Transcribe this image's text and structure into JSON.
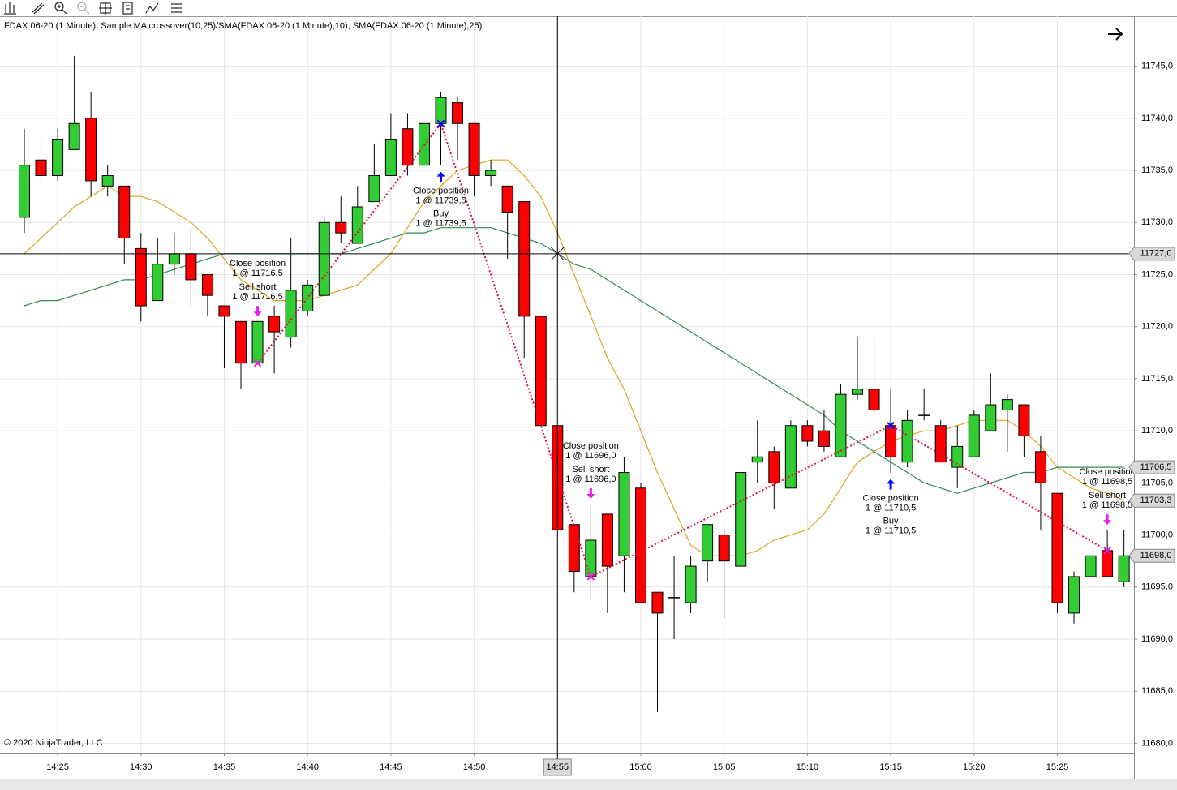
{
  "chart_data": {
    "type": "candlestick",
    "title": "FDAX 06-20 (1 Minute), Sample MA crossover(10,25)/SMA(FDAX 06-20 (1 Minute),10), SMA(FDAX 06-20 (1 Minute),25)",
    "copyright": "© 2020 NinjaTrader, LLC",
    "categories": [
      null,
      null,
      "14:25",
      null,
      null,
      null,
      null,
      "14:30",
      null,
      null,
      null,
      null,
      "14:35",
      null,
      null,
      null,
      null,
      "14:40",
      null,
      null,
      null,
      null,
      "14:45",
      null,
      null,
      null,
      null,
      "14:50",
      null,
      null,
      null,
      null,
      "14:55",
      null,
      null,
      null,
      null,
      "15:00",
      null,
      null,
      null,
      null,
      "15:05",
      null,
      null,
      null,
      null,
      "15:10",
      null,
      null,
      null,
      null,
      "15:15",
      null,
      null,
      null,
      null,
      "15:20",
      null,
      null,
      null,
      null,
      "15:25",
      null,
      null,
      null,
      null
    ],
    "open": [
      11730.5,
      11736,
      11734.5,
      11737,
      11740,
      11733.5,
      11733.5,
      11727.5,
      11722.5,
      11726,
      11727,
      11725,
      11722,
      11720.5,
      11716.5,
      11721,
      11719,
      11721.5,
      11723,
      11730,
      11728,
      11732,
      11734.5,
      11739,
      11735.5,
      11739.5,
      11741.5,
      11739.5,
      11734.5,
      11733.5,
      11732,
      11721,
      11710.5,
      11701,
      11696,
      11702,
      11698,
      11704.5,
      11694.5,
      11694,
      11693.5,
      11697.5,
      11700,
      11697,
      11707,
      11708,
      11704.5,
      11710.5,
      11710,
      11707.5,
      11713.5,
      11714,
      11710.5,
      11707,
      11711.5,
      11710.5,
      11706.5,
      11707.5,
      11710,
      11712,
      11712.5,
      11708,
      11704,
      11692.5,
      11696,
      11698.5,
      11695.5
    ],
    "high": [
      11739,
      11738,
      11739,
      11746,
      11742.5,
      11735.5,
      11733.5,
      11729,
      11728.5,
      11729,
      11729.5,
      11725,
      11722,
      11720.5,
      11720.5,
      11722,
      11728.5,
      11724.5,
      11730.5,
      11732.5,
      11733.5,
      11737.5,
      11740.5,
      11740.5,
      11739.5,
      11742.5,
      11742,
      11739.5,
      11736,
      11733.5,
      11732,
      11721,
      11710.5,
      11701,
      11703,
      11702,
      11707.5,
      11705,
      11694.5,
      11698,
      11698,
      11701,
      11700.5,
      11706,
      11711,
      11708.5,
      11711,
      11711,
      11712,
      11714.5,
      11719,
      11719,
      11714,
      11712,
      11714,
      11711,
      11710.5,
      11712,
      11715.5,
      11713.5,
      11712.5,
      11709.5,
      11704,
      11696.5,
      11698,
      11700.5,
      11700.5
    ],
    "low": [
      11729,
      11733.5,
      11734,
      11737,
      11732.5,
      11732.5,
      11726,
      11720.5,
      11722.5,
      11725,
      11722,
      11721,
      11716,
      11714,
      11716.5,
      11715.5,
      11718,
      11721,
      11723,
      11728,
      11728,
      11732,
      11734.5,
      11734.5,
      11735.5,
      11735.5,
      11736,
      11732.5,
      11733.5,
      11726.5,
      11717,
      11710.5,
      11700.5,
      11694.5,
      11694,
      11692.5,
      11694.5,
      11693.5,
      11683,
      11690,
      11692.5,
      11695.5,
      11692,
      11697,
      11705,
      11702.5,
      11704.5,
      11708.5,
      11708,
      11707.5,
      11713,
      11711,
      11706,
      11706.5,
      11711,
      11707,
      11704.5,
      11707.5,
      11710,
      11708,
      11707.5,
      11700.5,
      11692.5,
      11691.5,
      11696,
      11696,
      11695
    ],
    "close": [
      11735.5,
      11734.5,
      11738,
      11739.5,
      11734,
      11734.5,
      11728.5,
      11722,
      11726,
      11727,
      11724.5,
      11723,
      11721,
      11716.5,
      11720.5,
      11719.5,
      11723.5,
      11724,
      11730,
      11729,
      11731.5,
      11734.5,
      11738,
      11735.5,
      11739.5,
      11742,
      11739.5,
      11734.5,
      11735,
      11731,
      11721,
      11710.5,
      11700.5,
      11696.5,
      11699.5,
      11697,
      11706,
      11693.5,
      11692.5,
      11694,
      11697,
      11701,
      11697.5,
      11706,
      11707.5,
      11705,
      11710.5,
      11709,
      11708.5,
      11713.5,
      11714,
      11712,
      11707.5,
      11711,
      11711.5,
      11707,
      11708.5,
      11711.5,
      11712.5,
      11713,
      11709.5,
      11705,
      11693.5,
      11696,
      11698,
      11696,
      11698
    ],
    "last_close_label": "11698,0",
    "up_color": "#32cd32",
    "down_color": "#ff0000",
    "series": [
      {
        "color": "#daa520",
        "last_label": "11703,3",
        "values": [
          11727,
          11728.5,
          11730,
          11731.5,
          11732.5,
          11733.5,
          11732.5,
          11732.5,
          11732,
          11731,
          11730,
          11728.5,
          11726.5,
          11724.5,
          11723.5,
          11722.5,
          11722.5,
          11722.5,
          11723,
          11723.5,
          11724,
          11725.5,
          11727,
          11729.5,
          11732,
          11733.5,
          11735,
          11735.5,
          11736,
          11736,
          11734.5,
          11732.5,
          11729,
          11725,
          11721,
          11717,
          11714,
          11710,
          11706,
          11702.5,
          11699,
          11698,
          11698,
          11698,
          11698.5,
          11699.5,
          11700,
          11700.5,
          11702,
          11704.5,
          11707,
          11708,
          11709,
          11709.5,
          11710,
          11710,
          11710.5,
          11711,
          11711,
          11711,
          11710,
          11708.5,
          11706.5,
          11705.5,
          11704.5,
          11704,
          11703.3
        ]
      },
      {
        "color": "#2e8b57",
        "last_label": "11706,5",
        "values": [
          11722,
          11722.5,
          11722.5,
          11723,
          11723.5,
          11724,
          11724.5,
          11724.5,
          11725,
          11725.5,
          11726,
          11726.5,
          11727,
          11727,
          11727,
          11727,
          11727,
          11727,
          11727,
          11727,
          11727.5,
          11728,
          11728.5,
          11729,
          11729,
          11729.5,
          11729.5,
          11729.5,
          11729.5,
          11729,
          11728.5,
          11728,
          11727,
          11726,
          11725.5,
          11724.5,
          11723.5,
          11722.5,
          11721.5,
          11720.5,
          11719.5,
          11718.5,
          11717.5,
          11716.5,
          11715.5,
          11714.5,
          11713.5,
          11712.5,
          11711.5,
          11710,
          11709,
          11708,
          11707,
          11706,
          11705,
          11704.5,
          11704,
          11704.5,
          11705,
          11705.5,
          11706,
          11706,
          11706.5,
          11706.5,
          11706.5,
          11706.5,
          11706.5
        ]
      }
    ],
    "trade_line_color": "#e0103a",
    "executions": [
      null,
      null,
      null,
      null,
      null,
      null,
      null,
      null,
      null,
      null,
      null,
      null,
      null,
      null,
      {
        "close": "Close position",
        "close_label": "1 @ 11716,5",
        "entry": "Sell short",
        "entry_label": "1 @ 11716,5",
        "price": 11716.5,
        "arrow": "down",
        "color": "#e81ee8"
      },
      null,
      null,
      null,
      null,
      null,
      null,
      null,
      null,
      null,
      null,
      {
        "close": "Close position",
        "close_label": "1 @ 11739,5",
        "entry": "Buy",
        "entry_label": "1 @ 11739,5",
        "price": 11739.5,
        "arrow": "up",
        "color": "#0000ff"
      },
      null,
      null,
      null,
      null,
      null,
      null,
      null,
      null,
      {
        "close": "Close position",
        "close_label": "1 @ 11696,0",
        "entry": "Sell short",
        "entry_label": "1 @ 11696,0",
        "price": 11696,
        "arrow": "down",
        "color": "#e81ee8"
      },
      null,
      null,
      null,
      null,
      null,
      null,
      null,
      null,
      null,
      null,
      null,
      null,
      null,
      null,
      null,
      null,
      null,
      {
        "close": "Close position",
        "close_label": "1 @ 11710,5",
        "entry": "Buy",
        "entry_label": "1 @ 11710,5",
        "price": 11710.5,
        "arrow": "up",
        "color": "#0000ff"
      },
      null,
      null,
      null,
      null,
      null,
      null,
      null,
      null,
      null,
      null,
      null,
      null,
      {
        "close": "Close position",
        "close_label": "1 @ 11698,5",
        "entry": "Sell short",
        "entry_label": "1 @ 11698,5",
        "price": 11698.5,
        "arrow": "down",
        "color": "#e81ee8"
      },
      null
    ],
    "crosshair": {
      "x": "14:55",
      "y": 11727,
      "y_label": "11727,0"
    },
    "ylim": [
      11679.1,
      11749.8
    ],
    "yticks": [
      {
        "value": 11680,
        "label": "11680,0"
      },
      {
        "value": 11685,
        "label": "11685,0"
      },
      {
        "value": 11690,
        "label": "11690,0"
      },
      {
        "value": 11695,
        "label": "11695,0"
      },
      {
        "value": 11700,
        "label": "11700,0"
      },
      {
        "value": 11705,
        "label": "11705,0"
      },
      {
        "value": 11710,
        "label": "11710,0"
      },
      {
        "value": 11715,
        "label": "11715,0"
      },
      {
        "value": 11720,
        "label": "11720,0"
      },
      {
        "value": 11725,
        "label": "11725,0"
      },
      {
        "value": 11730,
        "label": "11730,0"
      },
      {
        "value": 11735,
        "label": "11735,0"
      },
      {
        "value": 11740,
        "label": "11740,0"
      },
      {
        "value": 11745,
        "label": "11745,0"
      }
    ],
    "grid": true
  }
}
